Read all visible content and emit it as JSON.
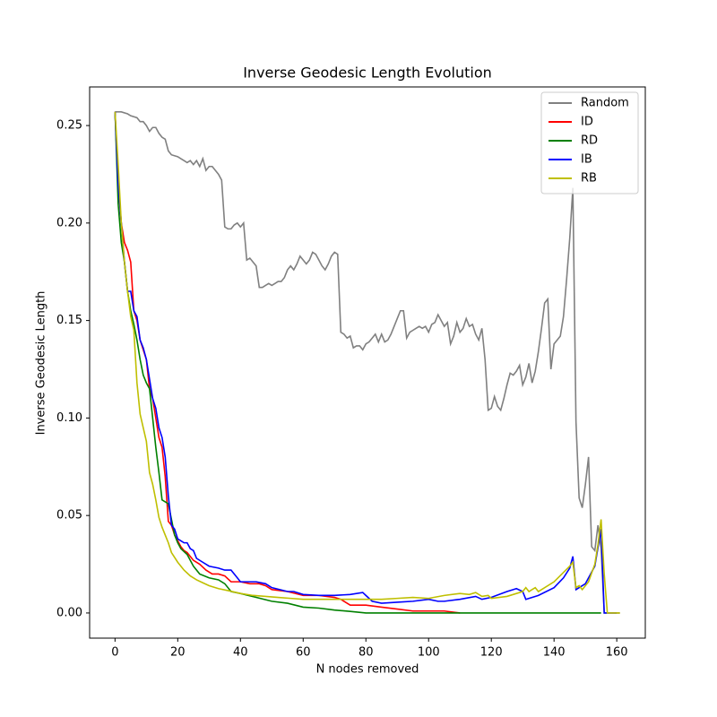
{
  "chart_data": {
    "type": "line",
    "title": "Inverse Geodesic Length Evolution",
    "x_label": "N nodes removed",
    "y_label": "Inverse Geodesic Length",
    "xlim": [
      -8.1,
      169.1
    ],
    "ylim": [
      -0.0129,
      0.2698
    ],
    "xticks": [
      0,
      20,
      40,
      60,
      80,
      100,
      120,
      140,
      160
    ],
    "yticks": [
      {
        "value": 0,
        "label": "0.00"
      },
      {
        "value": 0.05,
        "label": "0.05"
      },
      {
        "value": 0.1,
        "label": "0.10"
      },
      {
        "value": 0.15,
        "label": "0.15"
      },
      {
        "value": 0.2,
        "label": "0.20"
      },
      {
        "value": 0.25,
        "label": "0.25"
      }
    ],
    "legend": "upper right",
    "grid": false,
    "series": [
      {
        "name": "Random",
        "color": "#808080",
        "x": [
          0,
          2,
          4,
          5,
          7,
          8,
          9,
          10,
          11,
          12,
          13,
          14,
          15,
          16,
          17,
          18,
          20,
          21,
          22,
          23,
          24,
          25,
          26,
          27,
          28,
          29,
          30,
          31,
          32,
          33,
          34,
          35,
          36,
          37,
          38,
          39,
          40,
          41,
          42,
          43,
          44,
          45,
          46,
          47,
          48,
          49,
          50,
          51,
          52,
          53,
          54,
          55,
          56,
          57,
          58,
          59,
          60,
          61,
          62,
          63,
          64,
          65,
          66,
          67,
          68,
          69,
          70,
          71,
          72,
          73,
          74,
          75,
          76,
          77,
          78,
          79,
          80,
          81,
          82,
          83,
          84,
          85,
          86,
          87,
          88,
          89,
          90,
          91,
          92,
          93,
          94,
          95,
          96,
          97,
          98,
          99,
          100,
          101,
          102,
          103,
          104,
          105,
          106,
          107,
          108,
          109,
          110,
          111,
          112,
          113,
          114,
          115,
          116,
          117,
          118,
          119,
          120,
          121,
          122,
          123,
          124,
          125,
          126,
          127,
          128,
          129,
          130,
          131,
          132,
          133,
          134,
          135,
          136,
          137,
          138,
          139,
          140,
          141,
          142,
          143,
          144,
          145,
          146,
          147,
          148,
          149,
          150,
          151,
          152,
          153,
          154,
          155,
          156,
          157,
          158,
          159,
          160,
          161
        ],
        "values": [
          0.257,
          0.257,
          0.256,
          0.255,
          0.254,
          0.252,
          0.252,
          0.25,
          0.247,
          0.249,
          0.249,
          0.246,
          0.244,
          0.243,
          0.237,
          0.235,
          0.234,
          0.233,
          0.232,
          0.231,
          0.232,
          0.23,
          0.232,
          0.229,
          0.233,
          0.227,
          0.229,
          0.229,
          0.227,
          0.225,
          0.222,
          0.198,
          0.197,
          0.197,
          0.199,
          0.2,
          0.198,
          0.2,
          0.181,
          0.182,
          0.18,
          0.178,
          0.167,
          0.167,
          0.168,
          0.169,
          0.168,
          0.169,
          0.17,
          0.17,
          0.172,
          0.176,
          0.178,
          0.176,
          0.179,
          0.183,
          0.181,
          0.179,
          0.181,
          0.185,
          0.184,
          0.181,
          0.178,
          0.176,
          0.179,
          0.183,
          0.185,
          0.184,
          0.144,
          0.143,
          0.141,
          0.142,
          0.136,
          0.137,
          0.137,
          0.135,
          0.138,
          0.139,
          0.141,
          0.143,
          0.139,
          0.143,
          0.139,
          0.14,
          0.143,
          0.147,
          0.151,
          0.155,
          0.155,
          0.141,
          0.144,
          0.145,
          0.146,
          0.147,
          0.146,
          0.147,
          0.144,
          0.148,
          0.149,
          0.153,
          0.15,
          0.147,
          0.149,
          0.138,
          0.142,
          0.149,
          0.144,
          0.146,
          0.151,
          0.147,
          0.148,
          0.143,
          0.14,
          0.146,
          0.13,
          0.104,
          0.105,
          0.111,
          0.106,
          0.104,
          0.11,
          0.117,
          0.123,
          0.122,
          0.124,
          0.127,
          0.117,
          0.121,
          0.128,
          0.118,
          0.124,
          0.134,
          0.146,
          0.159,
          0.161,
          0.125,
          0.138,
          0.14,
          0.142,
          0.152,
          0.171,
          0.192,
          0.218,
          0.098,
          0.059,
          0.054,
          0.066,
          0.08,
          0.034,
          0.032,
          0.045,
          0.033,
          0,
          0,
          0,
          0,
          0,
          0
        ]
      },
      {
        "name": "ID",
        "color": "#ff0000",
        "x": [
          0,
          1,
          2,
          3,
          4,
          5,
          6,
          7,
          8,
          9,
          10,
          11,
          12,
          13,
          14,
          15,
          16,
          17,
          18,
          19,
          20,
          21,
          22,
          23,
          24,
          25,
          27,
          29,
          31,
          33,
          35,
          37,
          40,
          43,
          46,
          48,
          50,
          55,
          60,
          65,
          70,
          72,
          75,
          80,
          85,
          90,
          95,
          100,
          105,
          110
        ],
        "values": [
          0.257,
          0.22,
          0.2,
          0.19,
          0.186,
          0.18,
          0.155,
          0.15,
          0.14,
          0.135,
          0.13,
          0.115,
          0.11,
          0.1,
          0.09,
          0.085,
          0.07,
          0.047,
          0.045,
          0.04,
          0.037,
          0.034,
          0.032,
          0.031,
          0.029,
          0.027,
          0.025,
          0.022,
          0.02,
          0.02,
          0.019,
          0.016,
          0.016,
          0.015,
          0.015,
          0.014,
          0.012,
          0.011,
          0.009,
          0.009,
          0.008,
          0.007,
          0.004,
          0.004,
          0.003,
          0.002,
          0.001,
          0.001,
          0.001,
          0
        ]
      },
      {
        "name": "RD",
        "color": "#008000",
        "x": [
          0,
          1,
          2,
          3,
          4,
          5,
          6,
          7,
          8,
          9,
          10,
          11,
          12,
          13,
          14,
          15,
          17,
          18,
          19,
          20,
          21,
          23,
          25,
          27,
          30,
          33,
          35,
          37,
          40,
          45,
          50,
          55,
          60,
          65,
          70,
          75,
          80,
          90,
          100,
          110,
          120,
          130,
          140,
          150,
          155
        ],
        "values": [
          0.257,
          0.21,
          0.19,
          0.18,
          0.165,
          0.155,
          0.148,
          0.14,
          0.13,
          0.122,
          0.118,
          0.115,
          0.1,
          0.085,
          0.072,
          0.058,
          0.056,
          0.048,
          0.04,
          0.036,
          0.033,
          0.03,
          0.024,
          0.02,
          0.018,
          0.017,
          0.015,
          0.011,
          0.01,
          0.008,
          0.006,
          0.005,
          0.003,
          0.0025,
          0.0015,
          0.0008,
          0,
          0,
          0,
          0,
          0,
          0,
          0,
          0,
          0
        ]
      },
      {
        "name": "IB",
        "color": "#0000ff",
        "x": [
          0,
          1,
          2,
          3,
          4,
          5,
          6,
          7,
          8,
          9,
          10,
          11,
          12,
          13,
          14,
          15,
          16,
          17,
          18,
          19,
          20,
          21,
          22,
          23,
          24,
          25,
          26,
          28,
          30,
          33,
          35,
          37,
          38,
          40,
          45,
          48,
          50,
          55,
          57,
          60,
          65,
          70,
          75,
          79,
          80,
          82,
          85,
          90,
          95,
          100,
          103,
          105,
          110,
          115,
          117,
          120,
          125,
          128,
          130,
          131,
          135,
          140,
          143,
          145,
          146,
          147,
          150,
          153,
          155,
          156,
          157,
          160
        ],
        "values": [
          0.257,
          0.22,
          0.2,
          0.18,
          0.165,
          0.165,
          0.155,
          0.152,
          0.14,
          0.136,
          0.13,
          0.12,
          0.11,
          0.105,
          0.095,
          0.09,
          0.08,
          0.06,
          0.045,
          0.043,
          0.038,
          0.037,
          0.036,
          0.036,
          0.033,
          0.032,
          0.028,
          0.026,
          0.024,
          0.023,
          0.022,
          0.022,
          0.02,
          0.016,
          0.016,
          0.015,
          0.013,
          0.011,
          0.011,
          0.0095,
          0.009,
          0.009,
          0.0095,
          0.0105,
          0.009,
          0.006,
          0.005,
          0.0055,
          0.006,
          0.007,
          0.006,
          0.006,
          0.007,
          0.0085,
          0.007,
          0.008,
          0.011,
          0.0125,
          0.011,
          0.007,
          0.009,
          0.013,
          0.018,
          0.023,
          0.029,
          0.012,
          0.015,
          0.024,
          0.043,
          0,
          0,
          0
        ]
      },
      {
        "name": "RB",
        "color": "#bfbf00",
        "x": [
          0,
          1,
          2,
          3,
          4,
          5,
          6,
          7,
          8,
          9,
          10,
          11,
          12,
          13,
          14,
          15,
          16,
          17,
          18,
          20,
          22,
          24,
          26,
          28,
          30,
          33,
          36,
          40,
          44,
          48,
          52,
          56,
          60,
          70,
          80,
          85,
          90,
          95,
          100,
          105,
          110,
          113,
          115,
          117,
          119,
          120,
          125,
          130,
          131,
          132,
          133,
          134,
          135,
          140,
          145,
          146,
          147,
          148,
          149,
          151,
          153,
          154,
          155,
          156,
          157,
          160,
          161
        ],
        "values": [
          0.257,
          0.23,
          0.2,
          0.18,
          0.165,
          0.152,
          0.145,
          0.118,
          0.102,
          0.095,
          0.088,
          0.072,
          0.066,
          0.058,
          0.049,
          0.044,
          0.04,
          0.036,
          0.031,
          0.026,
          0.022,
          0.019,
          0.017,
          0.0155,
          0.014,
          0.0125,
          0.0115,
          0.01,
          0.009,
          0.0085,
          0.008,
          0.0075,
          0.007,
          0.007,
          0.007,
          0.007,
          0.0075,
          0.008,
          0.0075,
          0.009,
          0.01,
          0.0095,
          0.0105,
          0.0085,
          0.009,
          0.0075,
          0.0085,
          0.011,
          0.013,
          0.011,
          0.012,
          0.013,
          0.011,
          0.016,
          0.024,
          0.026,
          0.013,
          0.014,
          0.012,
          0.016,
          0.025,
          0.035,
          0.048,
          0.02,
          0,
          0,
          0
        ]
      }
    ]
  }
}
